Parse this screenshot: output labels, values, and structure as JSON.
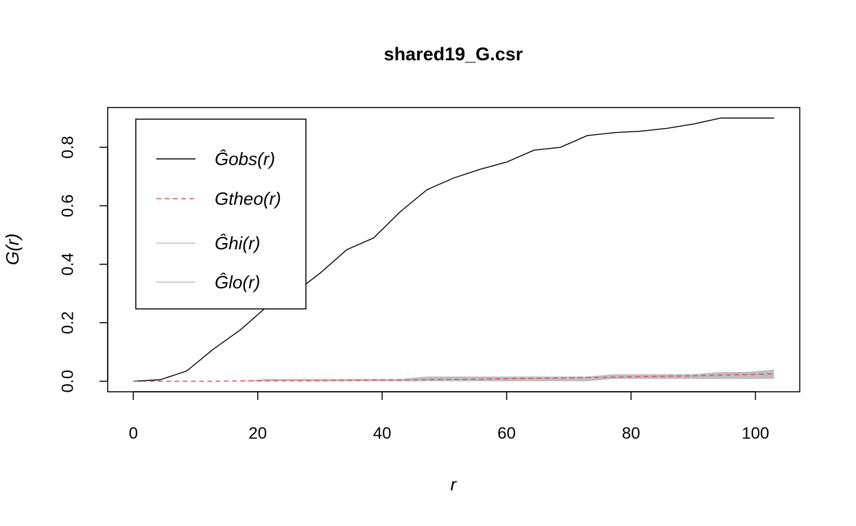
{
  "chart_data": {
    "type": "line",
    "title": "shared19_G.csr",
    "x_label": "r",
    "y_label": "G(r)",
    "x": [
      0,
      4.29,
      8.58,
      12.88,
      17.17,
      21.46,
      25.75,
      30.04,
      34.33,
      38.63,
      42.92,
      47.21,
      51.5,
      55.79,
      60.08,
      64.38,
      68.67,
      72.96,
      77.25,
      81.54,
      85.83,
      90.13,
      94.42,
      98.71,
      103
    ],
    "series": [
      {
        "name": "Ĝobs(r)",
        "color": "#000000",
        "dash": false,
        "values": [
          0,
          0.005,
          0.035,
          0.11,
          0.175,
          0.255,
          0.3,
          0.37,
          0.45,
          0.49,
          0.58,
          0.655,
          0.695,
          0.725,
          0.75,
          0.79,
          0.8,
          0.84,
          0.85,
          0.855,
          0.865,
          0.88,
          0.9,
          0.9,
          0.9
        ]
      },
      {
        "name": "Gtheo(r)",
        "color": "#df536b",
        "dash": true,
        "values": [
          0,
          0,
          0,
          0,
          0.001,
          0.001,
          0.002,
          0.002,
          0.003,
          0.004,
          0.004,
          0.005,
          0.006,
          0.007,
          0.009,
          0.01,
          0.011,
          0.013,
          0.014,
          0.016,
          0.017,
          0.019,
          0.021,
          0.023,
          0.025
        ]
      },
      {
        "name": "Ĝhi(r)",
        "color": "#bebebe",
        "dash": false,
        "values": [
          0,
          0,
          0,
          0,
          0,
          0.008,
          0.008,
          0.008,
          0.008,
          0.008,
          0.008,
          0.016,
          0.016,
          0.016,
          0.016,
          0.016,
          0.016,
          0.016,
          0.024,
          0.024,
          0.024,
          0.024,
          0.032,
          0.032,
          0.04
        ]
      },
      {
        "name": "Ĝlo(r)",
        "color": "#bebebe",
        "dash": false,
        "values": [
          0,
          0,
          0,
          0,
          0,
          0,
          0,
          0,
          0,
          0,
          0,
          0,
          0,
          0,
          0,
          0,
          0,
          0,
          0.008,
          0.008,
          0.008,
          0.008,
          0.008,
          0.008,
          0.008
        ]
      }
    ],
    "envelope_color": "#bebebe",
    "xlim": [
      -4.12,
      107.12
    ],
    "ylim": [
      -0.036,
      0.936
    ],
    "xticks": [
      0,
      20,
      40,
      60,
      80,
      100
    ],
    "yticks": [
      {
        "value": 0,
        "label": "0.0"
      },
      0.2,
      0.4,
      0.6,
      0.8
    ],
    "legend": "top-left"
  }
}
